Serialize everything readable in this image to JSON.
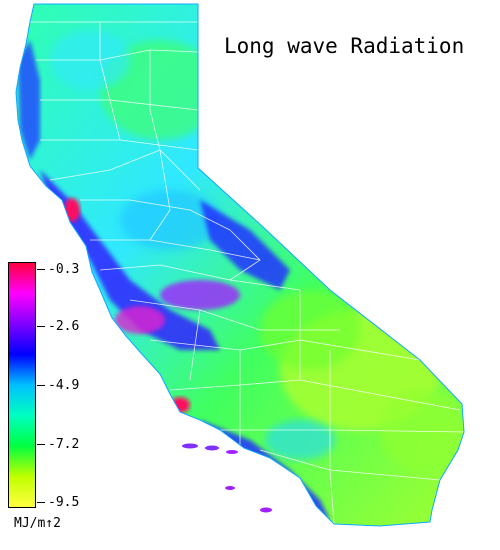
{
  "title": "Long wave Radiation",
  "legend": {
    "ticks": [
      "-0.3",
      "-2.6",
      "-4.9",
      "-7.2",
      "-9.5"
    ],
    "units": "MJ/m↑2",
    "colors": [
      "#ff0040",
      "#ff00ff",
      "#8000ff",
      "#0000ff",
      "#00c0ff",
      "#00ffc0",
      "#00ff40",
      "#c0ff00",
      "#ffff40"
    ]
  },
  "map": {
    "region": "California",
    "colors": {
      "high": "#ff1060",
      "magenta": "#c020ff",
      "blue": "#2020ff",
      "cyan": "#20c8ff",
      "aqua": "#20ffb0",
      "green": "#30ff40",
      "yellowgreen": "#b0ff20",
      "boundary": "#ffffff"
    }
  }
}
